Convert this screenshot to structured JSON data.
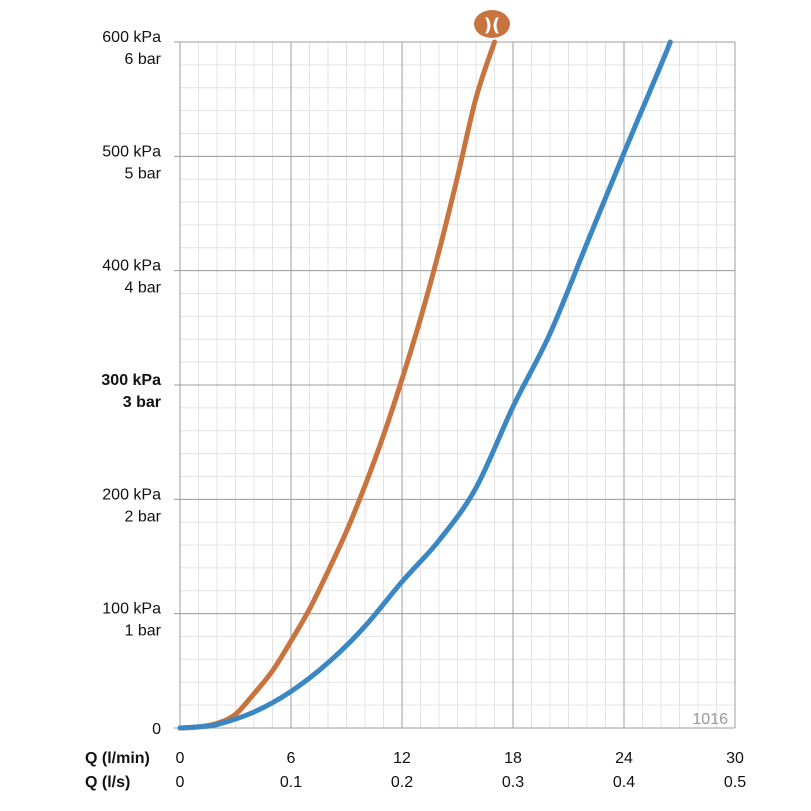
{
  "chart_data": {
    "type": "line",
    "x_unit_primary": "Q (l/min)",
    "x_unit_secondary": "Q (l/s)",
    "xlim": [
      0,
      30
    ],
    "ylim": [
      0,
      600
    ],
    "x_ticks": [
      {
        "value": 0,
        "primary": "0",
        "secondary": "0"
      },
      {
        "value": 6,
        "primary": "6",
        "secondary": "0.1"
      },
      {
        "value": 12,
        "primary": "12",
        "secondary": "0.2"
      },
      {
        "value": 18,
        "primary": "18",
        "secondary": "0.3"
      },
      {
        "value": 24,
        "primary": "24",
        "secondary": "0.4"
      },
      {
        "value": 30,
        "primary": "30",
        "secondary": "0.5"
      }
    ],
    "y_ticks": [
      {
        "value": 0,
        "kpa": "0",
        "bar": "",
        "bold": false
      },
      {
        "value": 100,
        "kpa": "100 kPa",
        "bar": "1 bar",
        "bold": false
      },
      {
        "value": 200,
        "kpa": "200 kPa",
        "bar": "2 bar",
        "bold": false
      },
      {
        "value": 300,
        "kpa": "300 kPa",
        "bar": "3 bar",
        "bold": true
      },
      {
        "value": 400,
        "kpa": "400 kPa",
        "bar": "4 bar",
        "bold": false
      },
      {
        "value": 500,
        "kpa": "500 kPa",
        "bar": "5 bar",
        "bold": false
      },
      {
        "value": 600,
        "kpa": "600 kPa",
        "bar": "6 bar",
        "bold": false
      }
    ],
    "grid": true,
    "series": [
      {
        "color": "#c8743f",
        "points": [
          [
            0,
            0
          ],
          [
            1,
            1
          ],
          [
            2,
            4
          ],
          [
            3,
            12
          ],
          [
            4,
            30
          ],
          [
            5,
            50
          ],
          [
            6,
            76
          ],
          [
            7,
            104
          ],
          [
            8,
            137
          ],
          [
            9,
            172
          ],
          [
            10,
            212
          ],
          [
            11,
            256
          ],
          [
            12,
            305
          ],
          [
            13,
            358
          ],
          [
            14,
            417
          ],
          [
            15,
            482
          ],
          [
            16,
            551
          ],
          [
            17,
            600
          ]
        ]
      },
      {
        "color": "#3b87c4",
        "points": [
          [
            0,
            0
          ],
          [
            1,
            1
          ],
          [
            2,
            3
          ],
          [
            4,
            14
          ],
          [
            6,
            32
          ],
          [
            8,
            57
          ],
          [
            10,
            89
          ],
          [
            12,
            128
          ],
          [
            14,
            164
          ],
          [
            16,
            210
          ],
          [
            18,
            281
          ],
          [
            20,
            345
          ],
          [
            22,
            424
          ],
          [
            24,
            503
          ],
          [
            26,
            580
          ],
          [
            26.5,
            600
          ]
        ]
      }
    ],
    "logo_color": "#c8743f",
    "logo_glyph": ")(",
    "code_label": "1016"
  }
}
